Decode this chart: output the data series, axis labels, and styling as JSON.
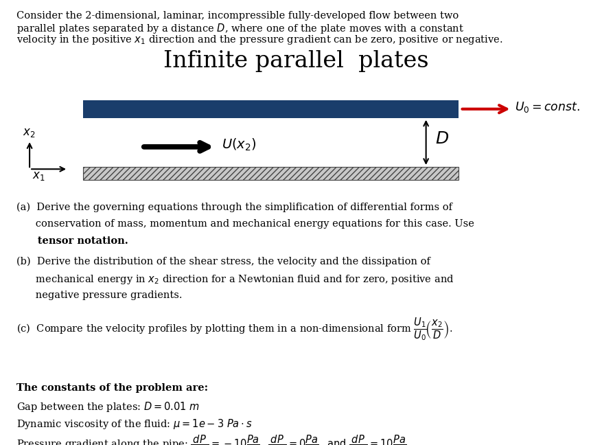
{
  "bg_color": "#ffffff",
  "title_text": "Infinite parallel  plates",
  "plate_color": "#1a3d6b",
  "intro_line1": "Consider the 2-dimensional, laminar, incompressible fully-developed flow between two",
  "intro_line2": "parallel plates separated by a distance ",
  "intro_line2b": "D",
  "intro_line2c": ", where one of the plate moves with a constant",
  "intro_line3": "velocity in the positive x",
  "intro_line3b": "1",
  "intro_line3c": " direction and the pressure gradient can be zero, positive or negative.",
  "part_a_1": "(a)  Derive the governing equations through the simplification of differential forms of",
  "part_a_2": "      conservation of mass, momentum and mechanical energy equations for this case. ",
  "part_a_2b": "Use",
  "part_a_3": "      tensor notation.",
  "part_b_1": "(b)  Derive the distribution of the shear stress, the velocity and the dissipation of",
  "part_b_2": "      mechanical energy in ",
  "part_b_2b": "x",
  "part_b_2c": "2",
  "part_b_2d": " direction for a Newtonian fluid and for zero, positive and",
  "part_b_3": "      negative pressure gradients.",
  "part_c": "(c)  Compare the velocity profiles by plotting them in a non-dimensional form",
  "const_header": "The constants of the problem are:",
  "gap_line": "Gap between the plates: ",
  "visc_line": "Dynamic viscosity of the fluid: ",
  "pres_line": "Pressure gradient along the pipe: "
}
